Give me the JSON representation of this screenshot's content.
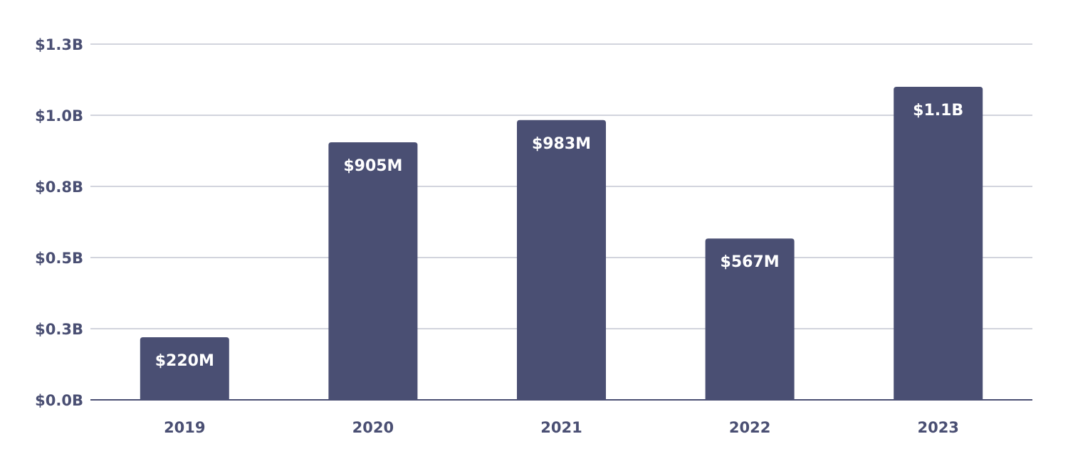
{
  "chart_data": {
    "type": "bar",
    "title": "",
    "xlabel": "",
    "ylabel": "",
    "categories": [
      "2019",
      "2020",
      "2021",
      "2022",
      "2023"
    ],
    "values": [
      0.22,
      0.905,
      0.983,
      0.567,
      1.1
    ],
    "value_units": "billions USD",
    "data_labels": [
      "$220M",
      "$905M",
      "$983M",
      "$567M",
      "$1.1B"
    ],
    "y_ticks": [
      0,
      0.25,
      0.5,
      0.75,
      1.0,
      1.25
    ],
    "y_tick_labels": [
      "$0.0B",
      "$0.3B",
      "$0.5B",
      "$0.8B",
      "$1.0B",
      "$1.3B"
    ],
    "ylim": [
      0,
      1.25
    ],
    "grid": true,
    "legend": "none",
    "colors": {
      "bar": "#4a4f73",
      "grid": "#c4c6d2",
      "axis": "#4a4f73",
      "label": "#ffffff"
    }
  }
}
